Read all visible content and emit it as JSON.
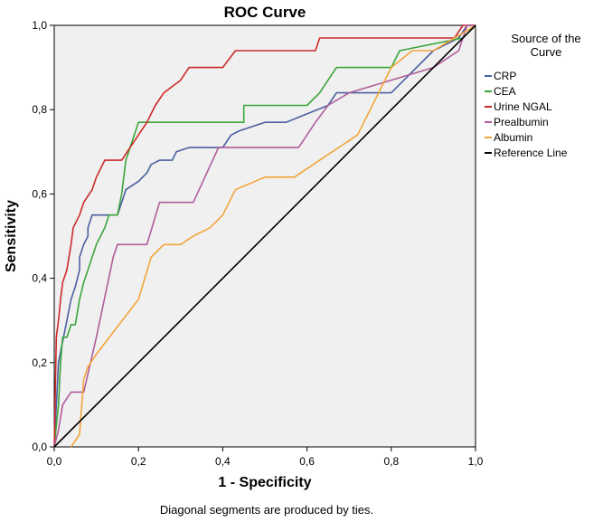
{
  "chart_data": {
    "type": "line",
    "title": "ROC Curve",
    "xlabel": "1 - Specificity",
    "ylabel": "Sensitivity",
    "xlim": [
      0,
      1
    ],
    "ylim": [
      0,
      1
    ],
    "x_ticks": [
      "0,0",
      "0,2",
      "0,4",
      "0,6",
      "0,8",
      "1,0"
    ],
    "y_ticks": [
      "0,0",
      "0,2",
      "0,4",
      "0,6",
      "0,8",
      "1,0"
    ],
    "grid": false,
    "legend": {
      "title": "Source of the Curve",
      "placement": "right"
    },
    "footnote": "Diagonal segments are produced by ties.",
    "series": [
      {
        "name": "CRP",
        "color": "#4a5fa0",
        "points": [
          [
            0,
            0
          ],
          [
            0.01,
            0.2
          ],
          [
            0.02,
            0.25
          ],
          [
            0.03,
            0.3
          ],
          [
            0.04,
            0.35
          ],
          [
            0.05,
            0.38
          ],
          [
            0.06,
            0.42
          ],
          [
            0.06,
            0.45
          ],
          [
            0.07,
            0.48
          ],
          [
            0.08,
            0.5
          ],
          [
            0.08,
            0.52
          ],
          [
            0.09,
            0.55
          ],
          [
            0.1,
            0.55
          ],
          [
            0.14,
            0.55
          ],
          [
            0.15,
            0.55
          ],
          [
            0.16,
            0.58
          ],
          [
            0.17,
            0.61
          ],
          [
            0.2,
            0.63
          ],
          [
            0.22,
            0.65
          ],
          [
            0.23,
            0.67
          ],
          [
            0.25,
            0.68
          ],
          [
            0.28,
            0.68
          ],
          [
            0.29,
            0.7
          ],
          [
            0.32,
            0.71
          ],
          [
            0.4,
            0.71
          ],
          [
            0.42,
            0.74
          ],
          [
            0.44,
            0.75
          ],
          [
            0.5,
            0.77
          ],
          [
            0.55,
            0.77
          ],
          [
            0.65,
            0.81
          ],
          [
            0.67,
            0.84
          ],
          [
            0.8,
            0.84
          ],
          [
            0.83,
            0.87
          ],
          [
            0.9,
            0.94
          ],
          [
            0.96,
            0.97
          ],
          [
            0.98,
            1.0
          ],
          [
            1.0,
            1.0
          ]
        ]
      },
      {
        "name": "CEA",
        "color": "#3aa63a",
        "points": [
          [
            0,
            0
          ],
          [
            0.01,
            0.1
          ],
          [
            0.015,
            0.2
          ],
          [
            0.02,
            0.26
          ],
          [
            0.03,
            0.26
          ],
          [
            0.04,
            0.29
          ],
          [
            0.05,
            0.29
          ],
          [
            0.06,
            0.35
          ],
          [
            0.07,
            0.39
          ],
          [
            0.08,
            0.42
          ],
          [
            0.09,
            0.45
          ],
          [
            0.1,
            0.48
          ],
          [
            0.12,
            0.52
          ],
          [
            0.13,
            0.55
          ],
          [
            0.15,
            0.55
          ],
          [
            0.16,
            0.6
          ],
          [
            0.17,
            0.68
          ],
          [
            0.18,
            0.71
          ],
          [
            0.19,
            0.74
          ],
          [
            0.2,
            0.77
          ],
          [
            0.27,
            0.77
          ],
          [
            0.45,
            0.77
          ],
          [
            0.45,
            0.81
          ],
          [
            0.6,
            0.81
          ],
          [
            0.63,
            0.84
          ],
          [
            0.65,
            0.87
          ],
          [
            0.67,
            0.9
          ],
          [
            0.8,
            0.9
          ],
          [
            0.82,
            0.94
          ],
          [
            0.97,
            0.97
          ],
          [
            1.0,
            1.0
          ]
        ]
      },
      {
        "name": "Urine NGAL",
        "color": "#cc2a2a",
        "points": [
          [
            0,
            0
          ],
          [
            0.005,
            0.26
          ],
          [
            0.01,
            0.3
          ],
          [
            0.015,
            0.35
          ],
          [
            0.02,
            0.39
          ],
          [
            0.03,
            0.42
          ],
          [
            0.035,
            0.45
          ],
          [
            0.04,
            0.48
          ],
          [
            0.045,
            0.52
          ],
          [
            0.06,
            0.55
          ],
          [
            0.07,
            0.58
          ],
          [
            0.09,
            0.61
          ],
          [
            0.1,
            0.64
          ],
          [
            0.12,
            0.68
          ],
          [
            0.16,
            0.68
          ],
          [
            0.18,
            0.71
          ],
          [
            0.2,
            0.74
          ],
          [
            0.22,
            0.77
          ],
          [
            0.24,
            0.81
          ],
          [
            0.26,
            0.84
          ],
          [
            0.3,
            0.87
          ],
          [
            0.32,
            0.9
          ],
          [
            0.4,
            0.9
          ],
          [
            0.43,
            0.94
          ],
          [
            0.62,
            0.94
          ],
          [
            0.63,
            0.97
          ],
          [
            0.95,
            0.97
          ],
          [
            0.97,
            1.0
          ],
          [
            1.0,
            1.0
          ]
        ]
      },
      {
        "name": "Prealbumin",
        "color": "#b05c9a",
        "points": [
          [
            0,
            0
          ],
          [
            0.01,
            0.04
          ],
          [
            0.02,
            0.1
          ],
          [
            0.04,
            0.13
          ],
          [
            0.07,
            0.13
          ],
          [
            0.1,
            0.26
          ],
          [
            0.14,
            0.45
          ],
          [
            0.15,
            0.48
          ],
          [
            0.22,
            0.48
          ],
          [
            0.25,
            0.58
          ],
          [
            0.27,
            0.58
          ],
          [
            0.33,
            0.58
          ],
          [
            0.39,
            0.71
          ],
          [
            0.58,
            0.71
          ],
          [
            0.62,
            0.77
          ],
          [
            0.65,
            0.81
          ],
          [
            0.7,
            0.84
          ],
          [
            0.8,
            0.87
          ],
          [
            0.9,
            0.9
          ],
          [
            0.96,
            0.94
          ],
          [
            0.98,
            1.0
          ],
          [
            1.0,
            1.0
          ]
        ]
      },
      {
        "name": "Albumin",
        "color": "#f2a53a",
        "points": [
          [
            0.04,
            0
          ],
          [
            0.06,
            0.03
          ],
          [
            0.07,
            0.16
          ],
          [
            0.08,
            0.19
          ],
          [
            0.1,
            0.22
          ],
          [
            0.2,
            0.35
          ],
          [
            0.23,
            0.45
          ],
          [
            0.26,
            0.48
          ],
          [
            0.3,
            0.48
          ],
          [
            0.33,
            0.5
          ],
          [
            0.37,
            0.52
          ],
          [
            0.4,
            0.55
          ],
          [
            0.43,
            0.61
          ],
          [
            0.5,
            0.64
          ],
          [
            0.57,
            0.64
          ],
          [
            0.63,
            0.68
          ],
          [
            0.72,
            0.74
          ],
          [
            0.8,
            0.9
          ],
          [
            0.85,
            0.94
          ],
          [
            0.9,
            0.94
          ],
          [
            0.95,
            0.97
          ],
          [
            1.0,
            1.0
          ]
        ]
      },
      {
        "name": "Reference Line",
        "color": "#000000",
        "points": [
          [
            0,
            0
          ],
          [
            1,
            1
          ]
        ]
      }
    ]
  }
}
